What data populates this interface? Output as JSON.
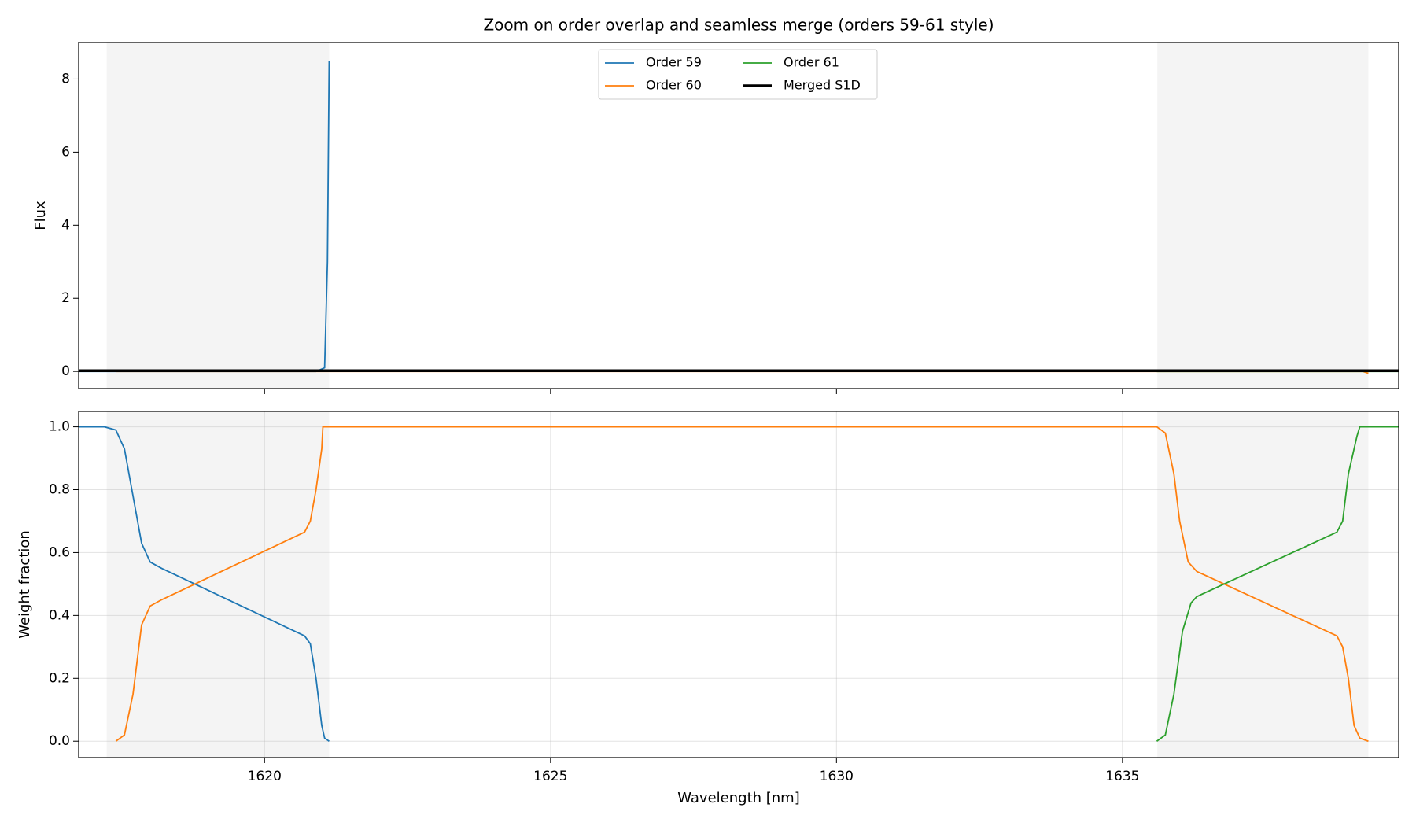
{
  "chart_data": [
    {
      "type": "line",
      "title": "Zoom on order overlap and seamless merge (orders 59-61 style)",
      "ylabel": "Flux",
      "xlim": [
        1616.75,
        1639.83
      ],
      "ylim": [
        -0.47,
        9.0
      ],
      "yticks": [
        0,
        2,
        4,
        6,
        8
      ],
      "grid": false,
      "legend": "upper center",
      "highlight_spans": [
        [
          1617.24,
          1621.13
        ],
        [
          1635.61,
          1639.3
        ]
      ],
      "series": [
        {
          "name": "Order 59",
          "color": "#1f77b4",
          "x": [
            1616.75,
            1620.9,
            1621.05,
            1621.1,
            1621.13
          ],
          "values": [
            0,
            0,
            0.1,
            3,
            8.5
          ]
        },
        {
          "name": "Order 60",
          "color": "#ff7f0e",
          "x": [
            1617.4,
            1639.2,
            1639.3
          ],
          "values": [
            0,
            0,
            -0.05
          ]
        },
        {
          "name": "Order 61",
          "color": "#2ca02c",
          "x": [
            1635.6,
            1639.83
          ],
          "values": [
            0,
            0
          ]
        },
        {
          "name": "Merged S1D",
          "color": "#000000",
          "x": [
            1616.75,
            1639.83
          ],
          "values": [
            0.02,
            0.02
          ]
        }
      ]
    },
    {
      "type": "line",
      "ylabel": "Weight fraction",
      "xlabel": "Wavelength [nm]",
      "xlim": [
        1616.75,
        1639.83
      ],
      "ylim": [
        -0.052,
        1.049
      ],
      "xticks": [
        1620,
        1625,
        1630,
        1635
      ],
      "yticks": [
        {
          "value": 0,
          "label": "0.0"
        },
        {
          "value": 0.2,
          "label": "0.2"
        },
        {
          "value": 0.4,
          "label": "0.4"
        },
        {
          "value": 0.6,
          "label": "0.6"
        },
        {
          "value": 0.8,
          "label": "0.8"
        },
        {
          "value": 1.0,
          "label": "1.0"
        }
      ],
      "grid": true,
      "highlight_spans": [
        [
          1617.24,
          1621.13
        ],
        [
          1635.61,
          1639.3
        ]
      ],
      "series": [
        {
          "name": "Order 59",
          "color": "#1f77b4",
          "x": [
            1616.75,
            1617.2,
            1617.4,
            1617.55,
            1617.7,
            1617.85,
            1618.0,
            1618.2,
            1620.7,
            1620.8,
            1620.9,
            1621.0,
            1621.05,
            1621.13
          ],
          "values": [
            1.0,
            1.0,
            0.99,
            0.93,
            0.78,
            0.63,
            0.57,
            0.55,
            0.335,
            0.31,
            0.2,
            0.05,
            0.01,
            0.0
          ]
        },
        {
          "name": "Order 60",
          "color": "#ff7f0e",
          "x": [
            1617.4,
            1617.55,
            1617.7,
            1617.85,
            1618.0,
            1618.2,
            1620.7,
            1620.8,
            1620.9,
            1621.0,
            1621.02,
            1635.6,
            1635.75,
            1635.9,
            1636.0,
            1636.15,
            1636.3,
            1638.75,
            1638.85,
            1638.95,
            1639.05,
            1639.15,
            1639.3
          ],
          "values": [
            0.0,
            0.02,
            0.15,
            0.37,
            0.43,
            0.45,
            0.665,
            0.7,
            0.8,
            0.93,
            1.0,
            1.0,
            0.98,
            0.85,
            0.7,
            0.57,
            0.54,
            0.335,
            0.3,
            0.2,
            0.05,
            0.01,
            0.0
          ]
        },
        {
          "name": "Order 61",
          "color": "#2ca02c",
          "x": [
            1635.6,
            1635.75,
            1635.9,
            1636.05,
            1636.2,
            1636.3,
            1638.75,
            1638.85,
            1638.95,
            1639.1,
            1639.15,
            1639.83
          ],
          "values": [
            0.0,
            0.02,
            0.15,
            0.35,
            0.44,
            0.46,
            0.665,
            0.7,
            0.85,
            0.97,
            1.0,
            1.0
          ]
        }
      ]
    }
  ]
}
